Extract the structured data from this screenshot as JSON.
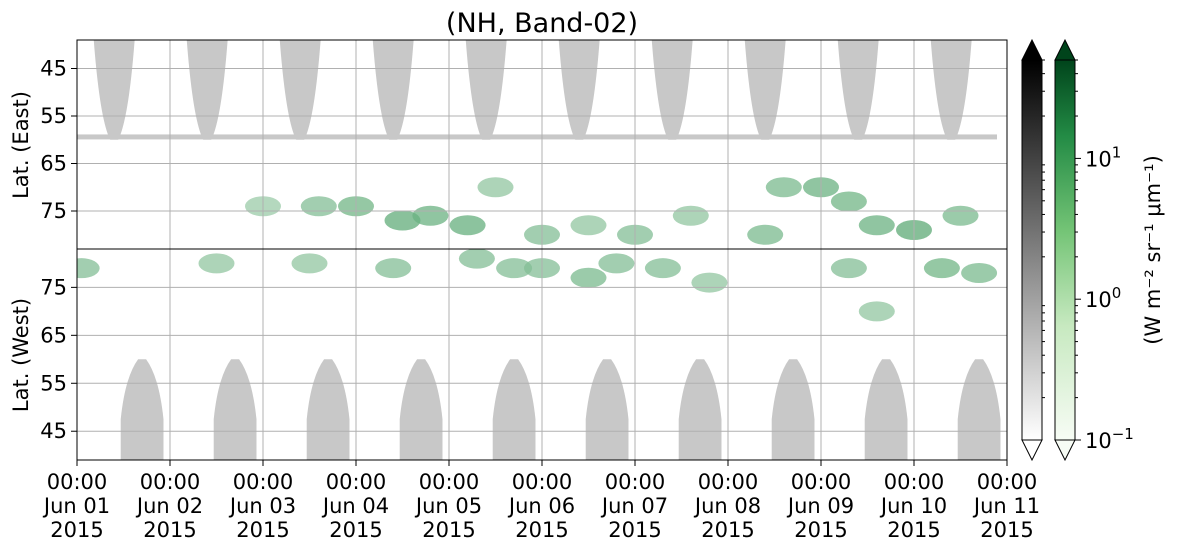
{
  "chart_data": {
    "type": "heatmap",
    "title": "(NH, Band-02)",
    "panels": [
      {
        "name": "east",
        "ylabel": "Lat. (East)",
        "yticks": [
          45,
          55,
          65,
          75
        ],
        "ylim": [
          39,
          83
        ],
        "y_increasing": "down"
      },
      {
        "name": "west",
        "ylabel": "Lat. (West)",
        "yticks": [
          75,
          65,
          55,
          45
        ],
        "ylim": [
          39,
          83
        ],
        "y_increasing": "up"
      }
    ],
    "x_ticks": [
      {
        "time": "00:00",
        "date": "Jun 01",
        "year": "2015"
      },
      {
        "time": "00:00",
        "date": "Jun 02",
        "year": "2015"
      },
      {
        "time": "00:00",
        "date": "Jun 03",
        "year": "2015"
      },
      {
        "time": "00:00",
        "date": "Jun 04",
        "year": "2015"
      },
      {
        "time": "00:00",
        "date": "Jun 05",
        "year": "2015"
      },
      {
        "time": "00:00",
        "date": "Jun 06",
        "year": "2015"
      },
      {
        "time": "00:00",
        "date": "Jun 07",
        "year": "2015"
      },
      {
        "time": "00:00",
        "date": "Jun 08",
        "year": "2015"
      },
      {
        "time": "00:00",
        "date": "Jun 09",
        "year": "2015"
      },
      {
        "time": "00:00",
        "date": "Jun 10",
        "year": "2015"
      },
      {
        "time": "00:00",
        "date": "Jun 11",
        "year": "2015"
      }
    ],
    "xlim": [
      "2015-06-01 00:00",
      "2015-06-11 00:00"
    ],
    "grid": true,
    "colorbars": [
      {
        "name": "gray",
        "colors": [
          "#ffffff",
          "#000000"
        ],
        "extend": "both"
      },
      {
        "name": "green",
        "colors": [
          "#f7fcf5",
          "#00441b"
        ],
        "extend": "both",
        "scale": "log",
        "ticks": [
          {
            "base": "10",
            "exp": "1",
            "value": 10
          },
          {
            "base": "10",
            "exp": "0",
            "value": 1
          },
          {
            "base": "10",
            "exp": "−1",
            "value": 0.1
          }
        ],
        "range": [
          0.1,
          50
        ]
      }
    ],
    "colorbar_label": "(W m⁻² sr⁻¹ μm⁻¹)",
    "nodata_color": "#c8c8c8",
    "nodata_day_offsets": [
      0.4,
      1.4,
      2.4,
      3.4,
      4.4,
      5.4,
      6.4,
      7.4,
      8.4,
      9.4
    ],
    "nodata_day_offsets_west": [
      0.7,
      1.7,
      2.7,
      3.7,
      4.7,
      5.7,
      6.7,
      7.7,
      8.7,
      9.7
    ],
    "green_blobs": [
      {
        "panel": "east",
        "day": 2.0,
        "lat": 74,
        "value": 1.5
      },
      {
        "panel": "east",
        "day": 2.6,
        "lat": 74,
        "value": 3
      },
      {
        "panel": "east",
        "day": 3.0,
        "lat": 74,
        "value": 5
      },
      {
        "panel": "east",
        "day": 3.5,
        "lat": 77,
        "value": 8
      },
      {
        "panel": "east",
        "day": 3.8,
        "lat": 76,
        "value": 6
      },
      {
        "panel": "east",
        "day": 4.2,
        "lat": 78,
        "value": 7
      },
      {
        "panel": "east",
        "day": 4.5,
        "lat": 70,
        "value": 2
      },
      {
        "panel": "east",
        "day": 5.0,
        "lat": 80,
        "value": 3
      },
      {
        "panel": "east",
        "day": 5.5,
        "lat": 78,
        "value": 2
      },
      {
        "panel": "east",
        "day": 6.0,
        "lat": 80,
        "value": 3
      },
      {
        "panel": "east",
        "day": 6.6,
        "lat": 76,
        "value": 2
      },
      {
        "panel": "east",
        "day": 7.4,
        "lat": 80,
        "value": 4
      },
      {
        "panel": "east",
        "day": 7.6,
        "lat": 70,
        "value": 4
      },
      {
        "panel": "east",
        "day": 8.0,
        "lat": 70,
        "value": 6
      },
      {
        "panel": "east",
        "day": 8.3,
        "lat": 73,
        "value": 5
      },
      {
        "panel": "east",
        "day": 8.6,
        "lat": 78,
        "value": 6
      },
      {
        "panel": "east",
        "day": 9.0,
        "lat": 79,
        "value": 9
      },
      {
        "panel": "east",
        "day": 9.5,
        "lat": 76,
        "value": 4
      },
      {
        "panel": "west",
        "day": 0.05,
        "lat": 79,
        "value": 3
      },
      {
        "panel": "west",
        "day": 1.5,
        "lat": 80,
        "value": 2
      },
      {
        "panel": "west",
        "day": 2.5,
        "lat": 80,
        "value": 2
      },
      {
        "panel": "west",
        "day": 3.4,
        "lat": 79,
        "value": 3
      },
      {
        "panel": "west",
        "day": 4.3,
        "lat": 81,
        "value": 3
      },
      {
        "panel": "west",
        "day": 4.7,
        "lat": 79,
        "value": 3
      },
      {
        "panel": "west",
        "day": 5.0,
        "lat": 79,
        "value": 3
      },
      {
        "panel": "west",
        "day": 5.5,
        "lat": 77,
        "value": 4
      },
      {
        "panel": "west",
        "day": 5.8,
        "lat": 80,
        "value": 3
      },
      {
        "panel": "west",
        "day": 6.3,
        "lat": 79,
        "value": 3
      },
      {
        "panel": "west",
        "day": 6.8,
        "lat": 76,
        "value": 2
      },
      {
        "panel": "west",
        "day": 8.3,
        "lat": 79,
        "value": 3
      },
      {
        "panel": "west",
        "day": 8.6,
        "lat": 70,
        "value": 2
      },
      {
        "panel": "west",
        "day": 9.3,
        "lat": 79,
        "value": 5
      },
      {
        "panel": "west",
        "day": 9.7,
        "lat": 78,
        "value": 4
      }
    ]
  }
}
